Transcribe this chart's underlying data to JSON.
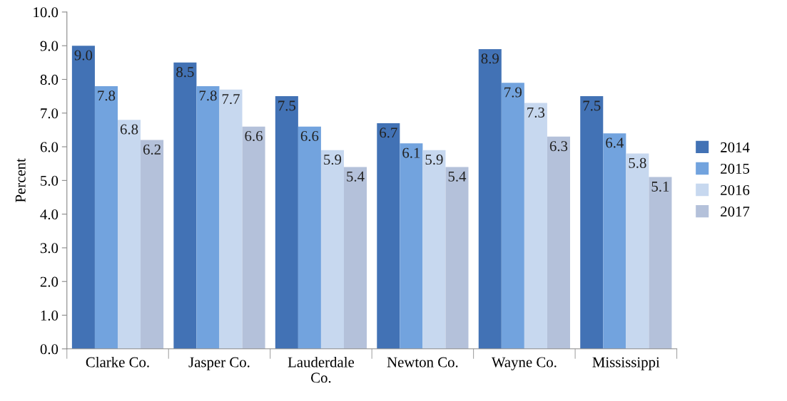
{
  "chart_data": {
    "type": "bar",
    "ylabel": "Percent",
    "categories": [
      "Clarke Co.",
      "Jasper Co.",
      "Lauderdale Co.",
      "Newton Co.",
      "Wayne Co.",
      "Mississippi"
    ],
    "series": [
      {
        "name": "2014",
        "color": "#4272b5",
        "values": [
          9.0,
          8.5,
          7.5,
          6.7,
          8.9,
          7.5
        ],
        "value_labels": [
          "9.0",
          "8.5",
          "7.5",
          "6.7",
          "8.9",
          "7.5"
        ]
      },
      {
        "name": "2015",
        "color": "#72a3de",
        "values": [
          7.8,
          7.8,
          6.6,
          6.1,
          7.9,
          6.4
        ],
        "value_labels": [
          "7.8",
          "7.8",
          "6.6",
          "6.1",
          "7.9",
          "6.4"
        ]
      },
      {
        "name": "2016",
        "color": "#c7d8ef",
        "values": [
          6.8,
          7.7,
          5.9,
          5.9,
          7.3,
          5.8
        ],
        "value_labels": [
          "6.8",
          "7.7",
          "5.9",
          "5.9",
          "7.3",
          "5.8"
        ]
      },
      {
        "name": "2017",
        "color": "#b4c1da",
        "values": [
          6.2,
          6.6,
          5.4,
          5.4,
          6.3,
          5.1
        ],
        "value_labels": [
          "6.2",
          "6.6",
          "5.4",
          "5.4",
          "6.3",
          "5.1"
        ]
      }
    ],
    "ylim": [
      0,
      10
    ],
    "yticks": [
      {
        "value": 0,
        "label": "0.0"
      },
      {
        "value": 1,
        "label": "1.0"
      },
      {
        "value": 2,
        "label": "2.0"
      },
      {
        "value": 3,
        "label": "3.0"
      },
      {
        "value": 4,
        "label": "4.0"
      },
      {
        "value": 5,
        "label": "5.0"
      },
      {
        "value": 6,
        "label": "6.0"
      },
      {
        "value": 7,
        "label": "7.0"
      },
      {
        "value": 8,
        "label": "8.0"
      },
      {
        "value": 9,
        "label": "9.0"
      },
      {
        "value": 10,
        "label": "10.0"
      }
    ],
    "grid": false,
    "legend": "right"
  }
}
